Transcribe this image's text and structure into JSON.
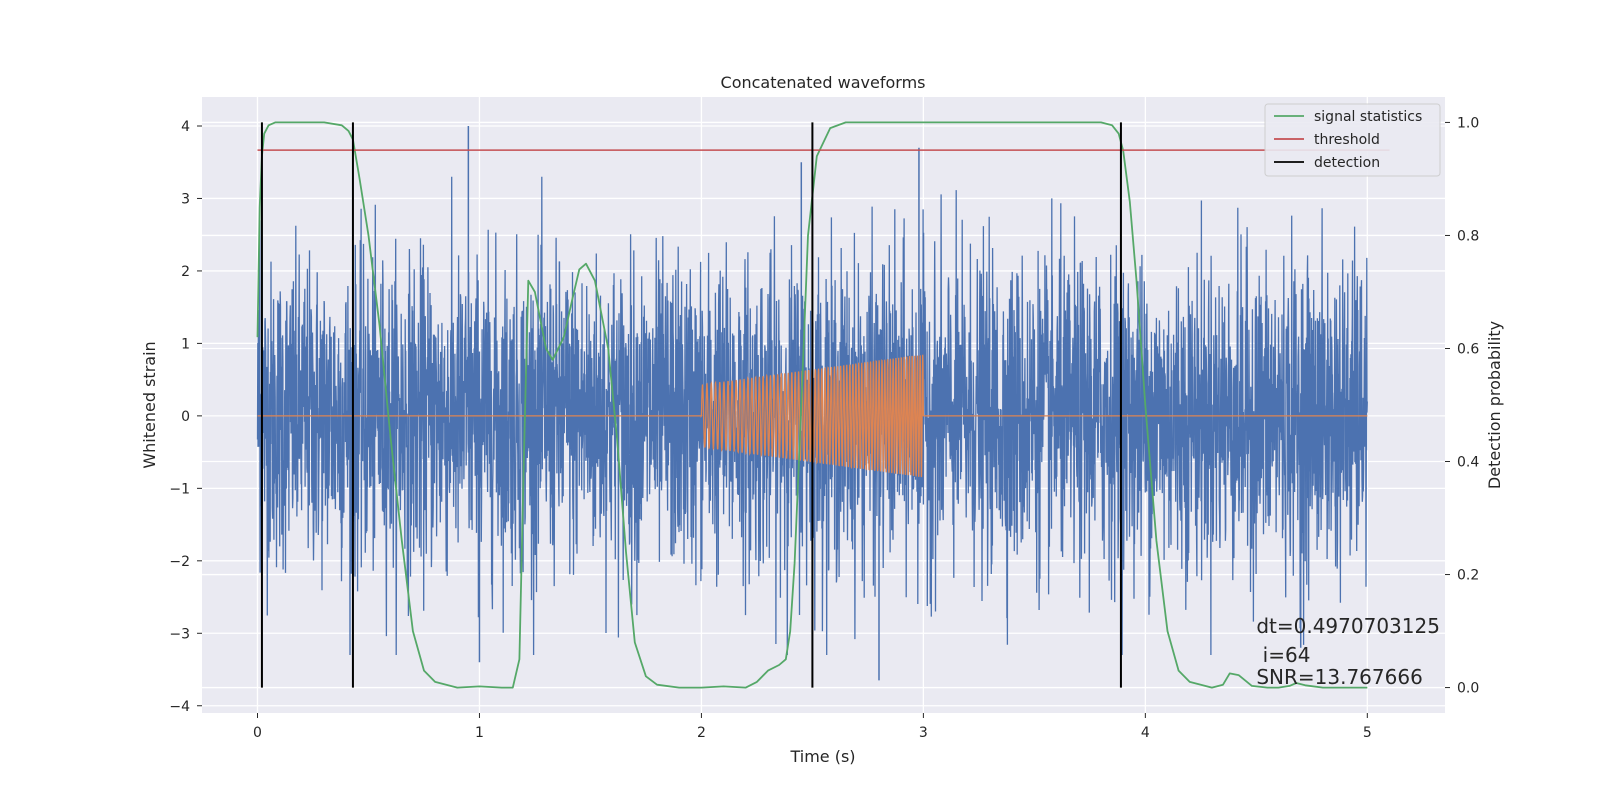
{
  "chart_data": {
    "type": "line",
    "title": "Concatenated waveforms",
    "xlabel": "Time (s)",
    "ylabel": "Whitened strain",
    "y2label": "Detection probability",
    "xlim": [
      -0.25,
      5.35
    ],
    "ylim": [
      -4.1,
      4.4
    ],
    "y2lim": [
      -0.045,
      1.045
    ],
    "x_ticks": [
      0,
      1,
      2,
      3,
      4,
      5
    ],
    "y_ticks": [
      -4,
      -3,
      -2,
      -1,
      0,
      1,
      2,
      3,
      4
    ],
    "y2_ticks": [
      0.0,
      0.2,
      0.4,
      0.6,
      0.8,
      1.0
    ],
    "grid": true,
    "background": "#eaeaf2",
    "legend_position": "top-right",
    "legend": [
      {
        "label": "signal statistics",
        "color": "#55a868"
      },
      {
        "label": "threshold",
        "color": "#c44e52"
      },
      {
        "label": "detection",
        "color": "#000000"
      }
    ],
    "series": [
      {
        "kind": "noise",
        "color": "#4c72b0",
        "x_range": [
          0,
          5
        ],
        "y_typical_range": [
          -3.7,
          4.0
        ],
        "peaks": [
          {
            "x": 0.95,
            "y": 4.0
          },
          {
            "x": 2.98,
            "y": 3.7
          },
          {
            "x": 2.45,
            "y": 3.5
          },
          {
            "x": 0.01,
            "y": 2.7
          },
          {
            "x": 2.8,
            "y": -3.65
          },
          {
            "x": 1.0,
            "y": -3.4
          },
          {
            "x": 4.7,
            "y": -3.2
          }
        ]
      },
      {
        "kind": "injection",
        "color": "#dd8452",
        "x_range": [
          0,
          5
        ],
        "chirp_start": 2.0,
        "chirp_end": 3.0,
        "amplitude_start": 0.43,
        "amplitude_end": 0.85,
        "cycles": 50
      },
      {
        "name": "signal statistics",
        "axis": "right",
        "color": "#55a868",
        "x": [
          0.0,
          0.01,
          0.02,
          0.03,
          0.05,
          0.08,
          0.12,
          0.2,
          0.3,
          0.38,
          0.41,
          0.43,
          0.46,
          0.5,
          0.55,
          0.6,
          0.65,
          0.7,
          0.75,
          0.8,
          0.9,
          1.0,
          1.1,
          1.15,
          1.18,
          1.2,
          1.22,
          1.25,
          1.3,
          1.33,
          1.38,
          1.42,
          1.45,
          1.48,
          1.52,
          1.58,
          1.62,
          1.66,
          1.7,
          1.75,
          1.8,
          1.9,
          2.0,
          2.1,
          2.2,
          2.25,
          2.3,
          2.35,
          2.38,
          2.4,
          2.42,
          2.45,
          2.48,
          2.52,
          2.58,
          2.65,
          2.8,
          3.0,
          3.5,
          3.8,
          3.85,
          3.88,
          3.9,
          3.93,
          3.96,
          4.0,
          4.05,
          4.1,
          4.15,
          4.2,
          4.3,
          4.35,
          4.38,
          4.42,
          4.48,
          4.55,
          4.6,
          4.65,
          4.68,
          4.72,
          4.8,
          5.0
        ],
        "y": [
          0.62,
          0.85,
          0.94,
          0.98,
          0.995,
          1.0,
          1.0,
          1.0,
          1.0,
          0.995,
          0.985,
          0.97,
          0.9,
          0.8,
          0.64,
          0.44,
          0.26,
          0.1,
          0.03,
          0.01,
          0.0,
          0.002,
          0.0,
          0.0,
          0.05,
          0.4,
          0.72,
          0.7,
          0.6,
          0.58,
          0.62,
          0.69,
          0.74,
          0.75,
          0.72,
          0.6,
          0.44,
          0.24,
          0.08,
          0.02,
          0.005,
          0.0,
          0.0,
          0.002,
          0.0,
          0.01,
          0.03,
          0.04,
          0.05,
          0.1,
          0.22,
          0.5,
          0.8,
          0.94,
          0.99,
          1.0,
          1.0,
          1.0,
          1.0,
          1.0,
          0.995,
          0.98,
          0.95,
          0.86,
          0.72,
          0.5,
          0.26,
          0.1,
          0.03,
          0.01,
          0.0,
          0.005,
          0.025,
          0.022,
          0.003,
          0.0,
          0.0,
          0.003,
          0.008,
          0.004,
          0.0,
          0.0
        ]
      },
      {
        "name": "threshold",
        "axis": "right",
        "color": "#c44e52",
        "x": [
          0.0,
          5.1
        ],
        "y": [
          0.951,
          0.951
        ]
      },
      {
        "name": "detection",
        "kind": "vlines",
        "color": "#000000",
        "x": [
          0.02,
          0.43,
          2.5,
          3.89
        ],
        "y_range": [
          0.0,
          1.0
        ]
      }
    ],
    "annotations": [
      {
        "text": "dt=0.4970703125",
        "x": 4.5,
        "y": -2.9
      },
      {
        "text": " i=64",
        "x": 4.5,
        "y": -3.3
      },
      {
        "text": "SNR=13.767666",
        "x": 4.5,
        "y": -3.6
      }
    ]
  }
}
